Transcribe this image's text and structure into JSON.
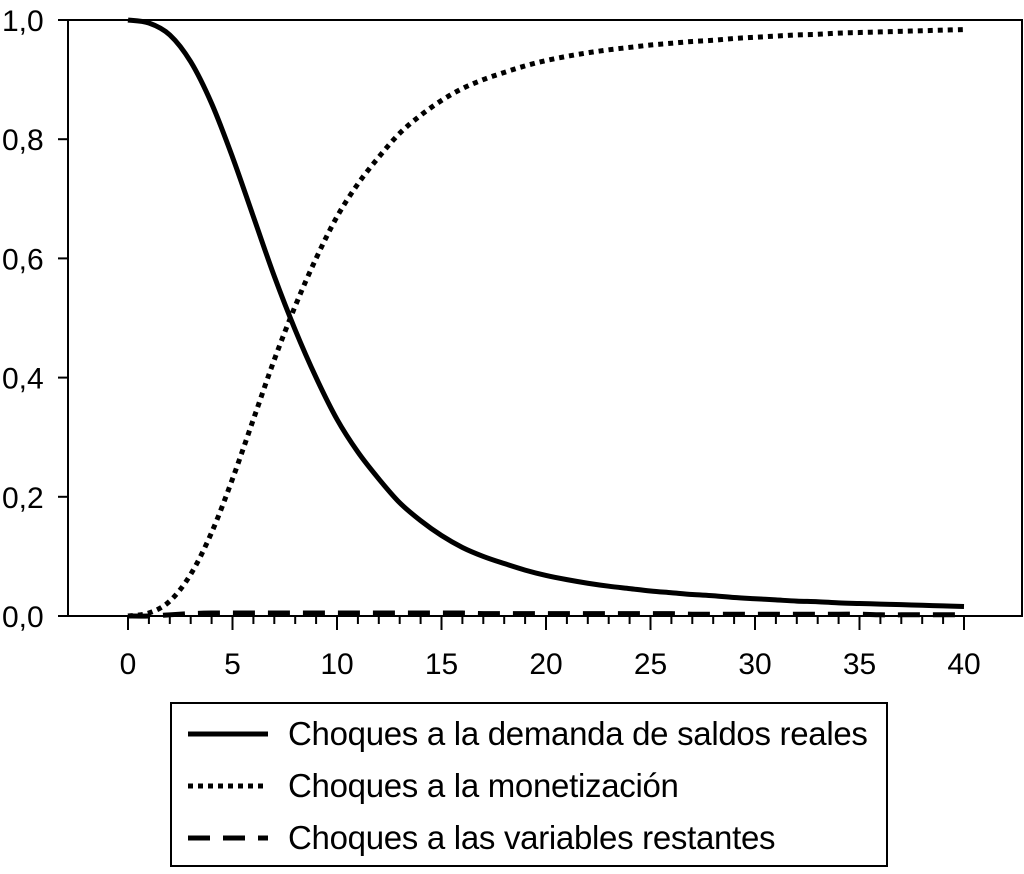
{
  "chart_data": {
    "type": "line",
    "title": "",
    "xlabel": "",
    "ylabel": "",
    "xlim": [
      0,
      40
    ],
    "ylim": [
      0,
      1
    ],
    "x_tick_labels": [
      "0",
      "5",
      "10",
      "15",
      "20",
      "25",
      "30",
      "35",
      "40"
    ],
    "y_tick_labels": [
      "0,0",
      "0,2",
      "0,4",
      "0,6",
      "0,8",
      "1,0"
    ],
    "grid": false,
    "legend_position": "bottom",
    "x": [
      0,
      1,
      2,
      3,
      4,
      5,
      6,
      7,
      8,
      9,
      10,
      11,
      12,
      13,
      14,
      15,
      16,
      17,
      18,
      19,
      20,
      21,
      22,
      23,
      24,
      25,
      26,
      27,
      28,
      29,
      30,
      31,
      32,
      33,
      34,
      35,
      36,
      37,
      38,
      39,
      40
    ],
    "series": [
      {
        "name": "Choques a la demanda de saldos reales",
        "style": "solid",
        "values": [
          1.0,
          0.995,
          0.975,
          0.93,
          0.86,
          0.77,
          0.67,
          0.57,
          0.48,
          0.4,
          0.33,
          0.275,
          0.23,
          0.19,
          0.16,
          0.135,
          0.115,
          0.1,
          0.088,
          0.077,
          0.068,
          0.061,
          0.055,
          0.05,
          0.046,
          0.042,
          0.039,
          0.036,
          0.034,
          0.031,
          0.029,
          0.027,
          0.025,
          0.024,
          0.022,
          0.021,
          0.02,
          0.019,
          0.018,
          0.017,
          0.016
        ]
      },
      {
        "name": "Choques a la monetización",
        "style": "dotted",
        "values": [
          0.0,
          0.005,
          0.025,
          0.07,
          0.14,
          0.23,
          0.33,
          0.43,
          0.52,
          0.6,
          0.67,
          0.725,
          0.77,
          0.81,
          0.84,
          0.865,
          0.885,
          0.9,
          0.912,
          0.923,
          0.932,
          0.939,
          0.945,
          0.95,
          0.954,
          0.958,
          0.961,
          0.964,
          0.966,
          0.969,
          0.971,
          0.973,
          0.975,
          0.976,
          0.978,
          0.979,
          0.98,
          0.981,
          0.982,
          0.983,
          0.984
        ]
      },
      {
        "name": "Choques a las variables restantes",
        "style": "dashed",
        "values": [
          0.0,
          0.0,
          0.002,
          0.004,
          0.005,
          0.005,
          0.005,
          0.005,
          0.005,
          0.005,
          0.005,
          0.005,
          0.005,
          0.005,
          0.005,
          0.005,
          0.005,
          0.004,
          0.004,
          0.004,
          0.004,
          0.004,
          0.004,
          0.004,
          0.004,
          0.004,
          0.004,
          0.003,
          0.003,
          0.003,
          0.003,
          0.003,
          0.003,
          0.003,
          0.003,
          0.003,
          0.002,
          0.002,
          0.002,
          0.002,
          0.002
        ]
      }
    ]
  },
  "colors": {
    "line": "#000000",
    "background": "#ffffff"
  }
}
